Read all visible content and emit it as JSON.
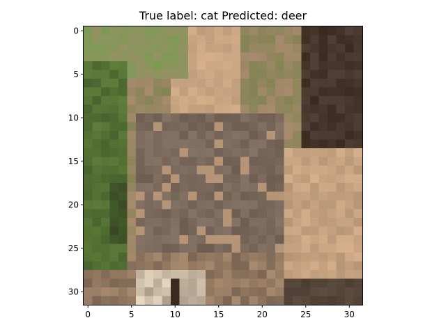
{
  "figure": {
    "title": "True label: cat Predicted: deer"
  },
  "image_content": {
    "description_kind": "pixelated 32x32 photo",
    "subject_icon": "cat-photo",
    "grid_size": 32,
    "palette": {
      "grass_dark": "#3f5a2a",
      "grass_mid": "#5f7d3a",
      "grass_light": "#7d9a55",
      "fur_light": "#d6b08a",
      "fur_mid": "#a88a6e",
      "fur_gray": "#857466",
      "fur_dark": "#5e4e42",
      "shadow": "#3a2a20",
      "cream": "#e6d8c0"
    }
  },
  "axes": {
    "x_ticks": [
      "0",
      "5",
      "10",
      "15",
      "20",
      "25",
      "30"
    ],
    "y_ticks": [
      "0",
      "5",
      "10",
      "15",
      "20",
      "25",
      "30"
    ],
    "x_values": [
      0,
      5,
      10,
      15,
      20,
      25,
      30
    ],
    "y_values": [
      0,
      5,
      10,
      15,
      20,
      25,
      30
    ],
    "xlim": [
      -0.5,
      31.5
    ],
    "ylim": [
      31.5,
      -0.5
    ]
  }
}
